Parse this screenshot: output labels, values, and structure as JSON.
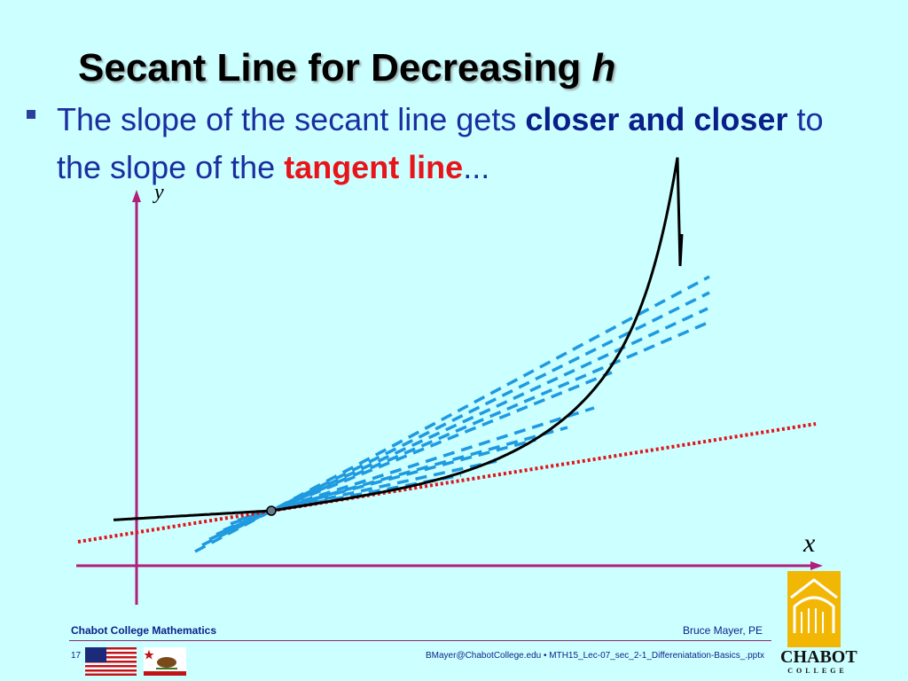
{
  "slide": {
    "title_main": "Secant Line for Decreasing ",
    "title_var": "h",
    "bullet": {
      "part1": "The slope of the secant line gets ",
      "part2": "closer and closer",
      "part3": " to the slope of the ",
      "part4": "tangent line",
      "part5": "..."
    }
  },
  "diagram": {
    "y_axis_label": "y",
    "x_axis_label": "x",
    "colors": {
      "axes": "#b0207a",
      "curve": "#000000",
      "secant": "#1f9ae0",
      "tangent": "#e0141a",
      "background": "#ccffff"
    },
    "secant_count": 10
  },
  "footer": {
    "left": "Chabot College Mathematics",
    "right": "Bruce Mayer, PE",
    "page_number": "17",
    "file_ref": "BMayer@ChabotCollege.edu • MTH15_Lec-07_sec_2-1_Differeniatation-Basics_.pptx",
    "logo_name": "CHABOT",
    "logo_sub": "COLLEGE",
    "icons": [
      "us-flag-icon",
      "california-flag-icon",
      "chabot-logo-icon"
    ]
  }
}
